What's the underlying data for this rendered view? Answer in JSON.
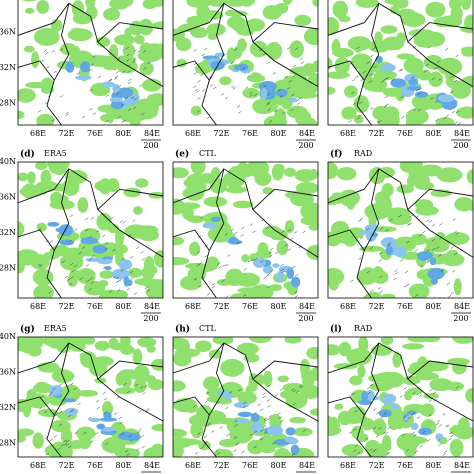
{
  "figure": {
    "panels": [
      {
        "label": "(d)",
        "name": "ERA5"
      },
      {
        "label": "(e)",
        "name": "CTL"
      },
      {
        "label": "(f)",
        "name": "RAD"
      },
      {
        "label": "(g)",
        "name": "ERA5"
      },
      {
        "label": "(h)",
        "name": "CTL"
      },
      {
        "label": "(i)",
        "name": "RAD"
      }
    ],
    "lat_labels": [
      "40N",
      "36N",
      "32N",
      "28N"
    ],
    "lon_labels": [
      "68E",
      "72E",
      "76E",
      "80E",
      "84E"
    ],
    "vector_scale": "200"
  }
}
